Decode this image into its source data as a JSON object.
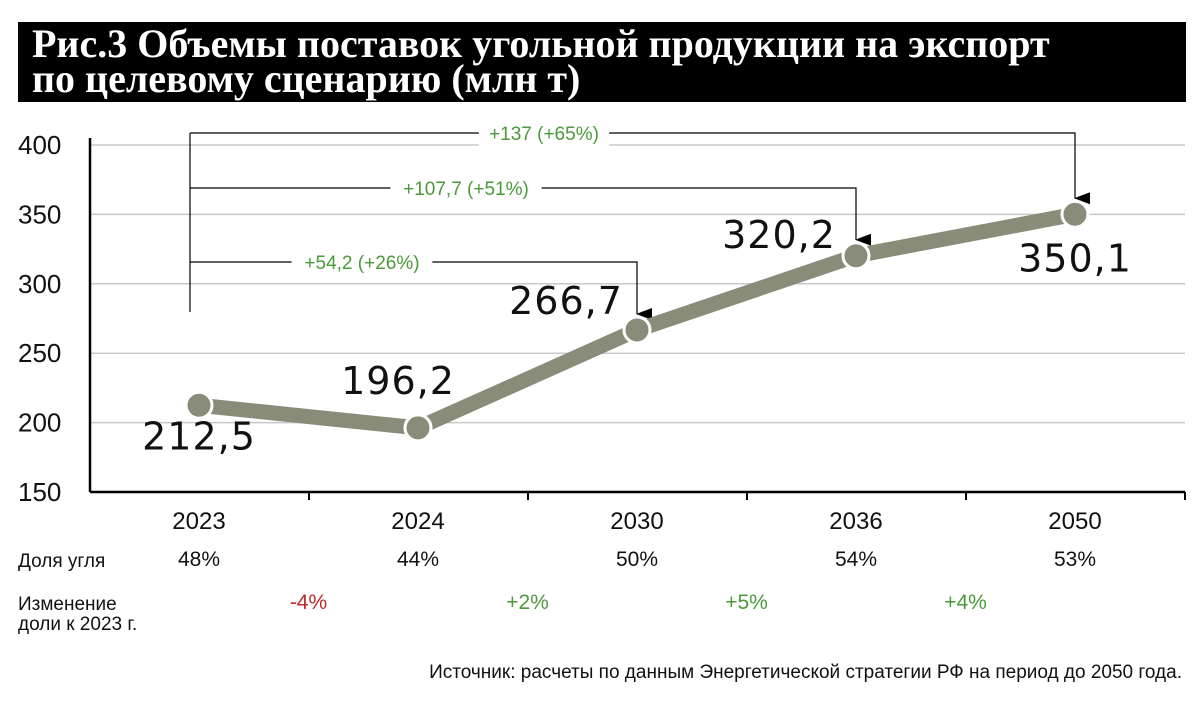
{
  "title": {
    "line1": "Рис.3 Объемы поставок угольной продукции на экспорт",
    "line2": "по целевому сценарию (млн т)"
  },
  "colors": {
    "line": "#8a8c7a",
    "positive": "#4a9a3a",
    "negative": "#c0282a",
    "grid": "#c8c8c8"
  },
  "chart_data": {
    "type": "line",
    "categories": [
      "2023",
      "2024",
      "2030",
      "2036",
      "2050"
    ],
    "values": [
      212.5,
      196.2,
      266.7,
      320.2,
      350.1
    ],
    "value_labels": [
      "212,5",
      "196,2",
      "266,7",
      "320,2",
      "350,1"
    ],
    "ylim": [
      150,
      400
    ],
    "yticks": [
      150,
      200,
      250,
      300,
      350,
      400
    ],
    "grid": true,
    "annotations": [
      {
        "text": "+54,2 (+26%)",
        "target_index": 2
      },
      {
        "text": "+107,7 (+51%)",
        "target_index": 3
      },
      {
        "text": "+137 (+65%)",
        "target_index": 4
      }
    ]
  },
  "rows": {
    "share_label": "Доля угля",
    "share_values": [
      "48%",
      "44%",
      "50%",
      "54%",
      "53%"
    ],
    "change_label_1": "Изменение",
    "change_label_2": "доли к 2023 г.",
    "change_values": [
      "-4%",
      "+2%",
      "+5%",
      "+4%"
    ]
  },
  "source": "Источник: расчеты по данным Энергетической стратегии РФ на период до 2050 года."
}
